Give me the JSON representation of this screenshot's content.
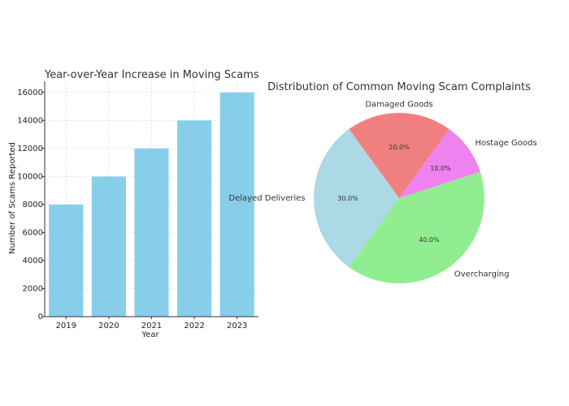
{
  "chart_data": [
    {
      "type": "bar",
      "title": "Year-over-Year Increase in Moving Scams",
      "xlabel": "Year",
      "ylabel": "Number of Scams Reported",
      "categories": [
        "2019",
        "2020",
        "2021",
        "2022",
        "2023"
      ],
      "values": [
        8000,
        10000,
        12000,
        14000,
        16000
      ],
      "ylim": [
        0,
        16800
      ],
      "yticks": [
        0,
        2000,
        4000,
        6000,
        8000,
        10000,
        12000,
        14000,
        16000
      ],
      "ytick_labels": [
        "0",
        "2000",
        "4000",
        "6000",
        "8000",
        "10000",
        "12000",
        "14000",
        "16000"
      ],
      "grid": true,
      "bar_color": "#87ceeb"
    },
    {
      "type": "pie",
      "title": "Distribution of Common Moving Scam Complaints",
      "labels": [
        "Damaged Goods",
        "Delayed Deliveries",
        "Overcharging",
        "Hostage Goods"
      ],
      "values": [
        20,
        30,
        40,
        10
      ],
      "pct_labels": [
        "20.0%",
        "30.0%",
        "40.0%",
        "10.0%"
      ],
      "colors": [
        "#f08080",
        "#add8e6",
        "#90ee90",
        "#ee82ee"
      ]
    }
  ]
}
